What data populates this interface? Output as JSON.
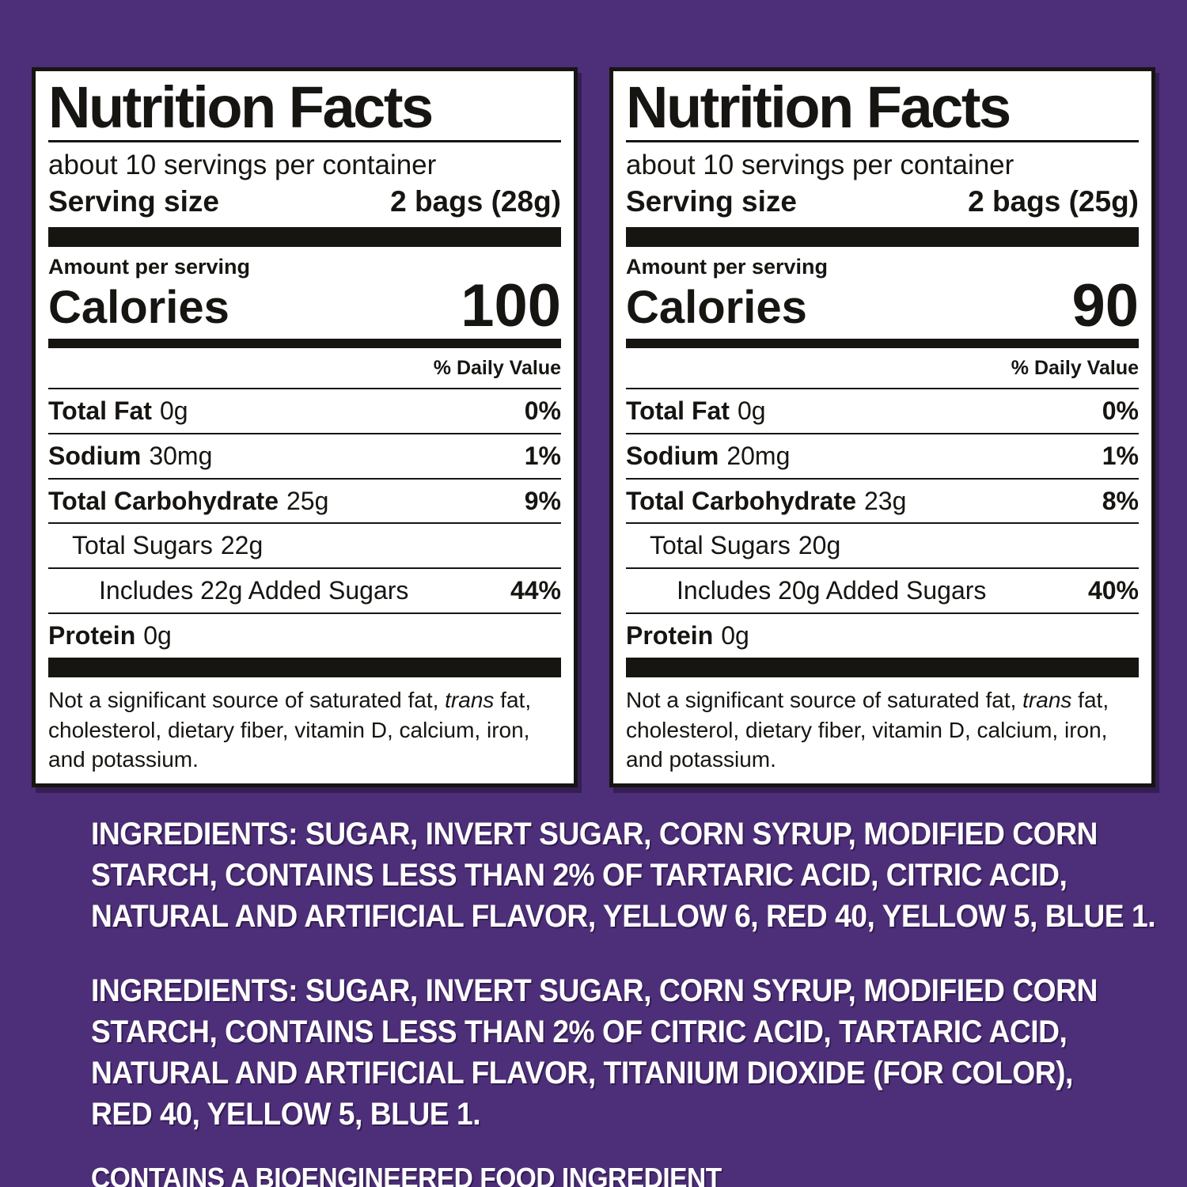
{
  "colors": {
    "background": "#4D2E78",
    "panel_bg": "#FFFFFF",
    "ink": "#171511",
    "ingredients_text": "#FFFFFF"
  },
  "panels": [
    {
      "title": "Nutrition Facts",
      "servings_per_container": "about 10 servings per container",
      "serving_size_label": "Serving size",
      "serving_size_value": "2 bags (28g)",
      "amount_per_serving": "Amount per serving",
      "calories_label": "Calories",
      "calories_value": "100",
      "daily_value_header": "% Daily Value",
      "rows": [
        {
          "name": "Total Fat",
          "amount": "0g",
          "dv": "0%"
        },
        {
          "name": "Sodium",
          "amount": "30mg",
          "dv": "1%"
        },
        {
          "name": "Total Carbohydrate",
          "amount": "25g",
          "dv": "9%"
        },
        {
          "name": "Total Sugars",
          "amount": "22g",
          "dv": ""
        },
        {
          "name": "Includes 22g Added Sugars",
          "amount": "",
          "dv": "44%"
        },
        {
          "name": "Protein",
          "amount": "0g",
          "dv": ""
        }
      ],
      "footnote_prefix": "Not a significant source of saturated fat, ",
      "footnote_italic": "trans",
      "footnote_suffix": " fat, cholesterol, dietary fiber, vitamin D, calcium, iron, and potassium."
    },
    {
      "title": "Nutrition Facts",
      "servings_per_container": "about 10 servings per container",
      "serving_size_label": "Serving size",
      "serving_size_value": "2 bags (25g)",
      "amount_per_serving": "Amount per serving",
      "calories_label": "Calories",
      "calories_value": "90",
      "daily_value_header": "% Daily Value",
      "rows": [
        {
          "name": "Total Fat",
          "amount": "0g",
          "dv": "0%"
        },
        {
          "name": "Sodium",
          "amount": "20mg",
          "dv": "1%"
        },
        {
          "name": "Total Carbohydrate",
          "amount": "23g",
          "dv": "8%"
        },
        {
          "name": "Total Sugars",
          "amount": "20g",
          "dv": ""
        },
        {
          "name": "Includes 20g Added Sugars",
          "amount": "",
          "dv": "40%"
        },
        {
          "name": "Protein",
          "amount": "0g",
          "dv": ""
        }
      ],
      "footnote_prefix": "Not a significant source of saturated fat, ",
      "footnote_italic": "trans",
      "footnote_suffix": " fat, cholesterol, dietary fiber, vitamin D, calcium, iron, and potassium."
    }
  ],
  "ingredients": [
    {
      "lines": [
        "INGREDIENTS: SUGAR, INVERT SUGAR, CORN SYRUP, MODIFIED CORN",
        "STARCH, CONTAINS LESS THAN 2% OF TARTARIC ACID, CITRIC ACID,",
        "NATURAL AND ARTIFICIAL FLAVOR, YELLOW 6, RED 40, YELLOW 5, BLUE 1."
      ]
    },
    {
      "lines": [
        "INGREDIENTS: SUGAR, INVERT SUGAR, CORN SYRUP, MODIFIED CORN",
        "STARCH, CONTAINS LESS THAN 2% OF CITRIC ACID, TARTARIC ACID,",
        "NATURAL AND ARTIFICIAL FLAVOR, TITANIUM DIOXIDE (FOR COLOR),",
        "RED 40, YELLOW 5, BLUE 1."
      ]
    }
  ],
  "bioengineered_note": "CONTAINS A BIOENGINEERED FOOD INGREDIENT"
}
